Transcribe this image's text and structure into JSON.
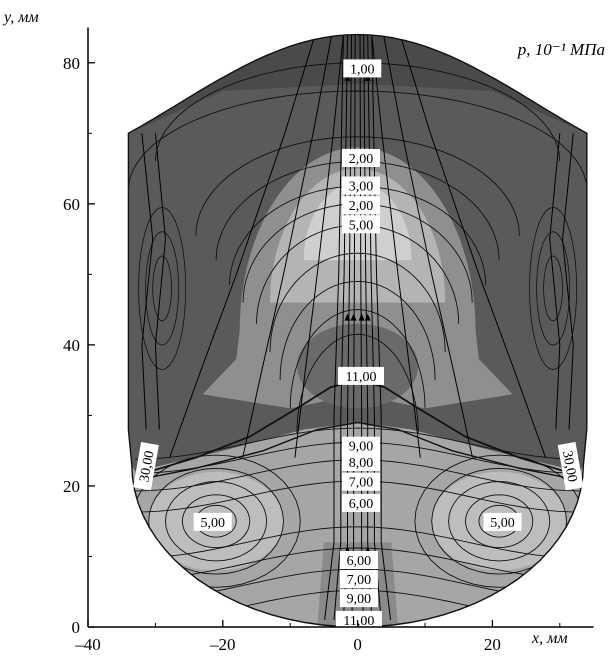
{
  "chart_data": {
    "type": "contour",
    "xlabel": "x, мм",
    "ylabel": "y, мм",
    "legend_title": "p, 10⁻¹ МПа",
    "xlim": [
      -40,
      35
    ],
    "ylim": [
      0,
      85
    ],
    "x_ticks": [
      {
        "value": -40,
        "label": "–40"
      },
      {
        "value": -20,
        "label": "–20"
      },
      {
        "value": 0,
        "label": "0"
      },
      {
        "value": 20,
        "label": "20"
      }
    ],
    "y_ticks": [
      {
        "value": 0,
        "label": "0"
      },
      {
        "value": 20,
        "label": "20"
      },
      {
        "value": 40,
        "label": "40"
      },
      {
        "value": 60,
        "label": "60"
      },
      {
        "value": 80,
        "label": "80"
      }
    ],
    "contour_labels": [
      {
        "text": "1,00",
        "x": 0.7,
        "y": 79.2
      },
      {
        "text": "2,00",
        "x": 0.5,
        "y": 66.5
      },
      {
        "text": "3,00",
        "x": 0.5,
        "y": 62.6
      },
      {
        "text": "2,00",
        "x": 0.5,
        "y": 59.8
      },
      {
        "text": "5,00",
        "x": 0.5,
        "y": 57.1
      },
      {
        "text": "11,00",
        "x": 0.5,
        "y": 35.6
      },
      {
        "text": "9,00",
        "x": 0.5,
        "y": 25.7
      },
      {
        "text": "8,00",
        "x": 0.5,
        "y": 23.4
      },
      {
        "text": "7,00",
        "x": 0.5,
        "y": 20.6
      },
      {
        "text": "6,00",
        "x": 0.5,
        "y": 17.6
      },
      {
        "text": "5,00",
        "x": -21.5,
        "y": 14.9
      },
      {
        "text": "5,00",
        "x": 21.5,
        "y": 14.9
      },
      {
        "text": "6,00",
        "x": 0.2,
        "y": 9.5
      },
      {
        "text": "7,00",
        "x": 0.2,
        "y": 6.8
      },
      {
        "text": "9,00",
        "x": 0.2,
        "y": 4.1
      },
      {
        "text": "11,00",
        "x": 0.2,
        "y": 1.0
      },
      {
        "text": "30,00",
        "x": -31.4,
        "y": 22.8,
        "rotate": -80
      },
      {
        "text": "30,00",
        "x": 31.6,
        "y": 22.8,
        "rotate": 80
      }
    ]
  }
}
